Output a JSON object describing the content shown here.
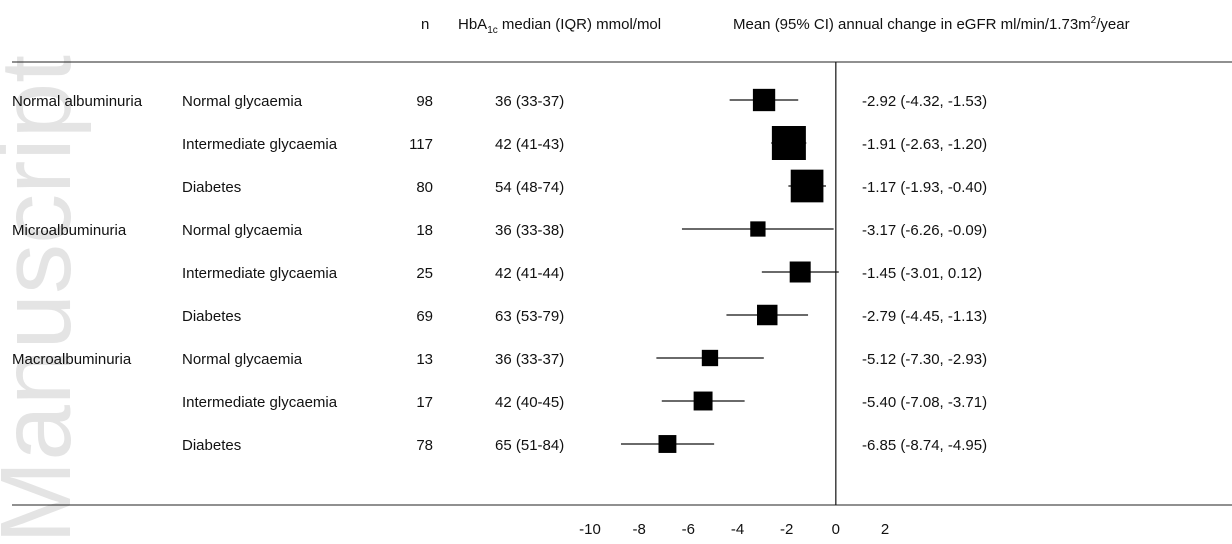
{
  "watermark": "Manuscript",
  "columns": {
    "n": "n",
    "hba1c_main": "HbA",
    "hba1c_sub": "1c",
    "hba1c_rest": " median (IQR) mmol/mol",
    "effect_main": "Mean (95% CI) annual change in eGFR ml/min/1.73m",
    "effect_sup": "2",
    "effect_rest": "/year"
  },
  "groups": [
    {
      "label": "Normal albuminuria",
      "row": 0
    },
    {
      "label": "Microalbuminuria",
      "row": 3
    },
    {
      "label": "Macroalbuminuria",
      "row": 6
    }
  ],
  "chart_data": {
    "type": "forest",
    "title": "",
    "xlabel": "",
    "xlim": [
      -10,
      2
    ],
    "xticks": [
      -10,
      -8,
      -6,
      -4,
      -2,
      0,
      2
    ],
    "reference_line": 0,
    "rows": [
      {
        "albuminuria": "Normal albuminuria",
        "glycaemia": "Normal glycaemia",
        "n": "98",
        "hba1c": "36 (33-37)",
        "mean": -2.92,
        "lo": -4.32,
        "hi": -1.53,
        "ci_text": "-2.92 (-4.32, -1.53)",
        "weight": 0.55
      },
      {
        "albuminuria": "Normal albuminuria",
        "glycaemia": "Intermediate glycaemia",
        "n": "117",
        "hba1c": "42 (41-43)",
        "mean": -1.91,
        "lo": -2.63,
        "hi": -1.2,
        "ci_text": "-1.91 (-2.63, -1.20)",
        "weight": 1.0
      },
      {
        "albuminuria": "Normal albuminuria",
        "glycaemia": "Diabetes",
        "n": "80",
        "hba1c": "54 (48-74)",
        "mean": -1.17,
        "lo": -1.93,
        "hi": -0.4,
        "ci_text": "-1.17 (-1.93, -0.40)",
        "weight": 0.95
      },
      {
        "albuminuria": "Microalbuminuria",
        "glycaemia": "Normal glycaemia",
        "n": "18",
        "hba1c": "36 (33-38)",
        "mean": -3.17,
        "lo": -6.26,
        "hi": -0.09,
        "ci_text": "-3.17 (-6.26, -0.09)",
        "weight": 0.28
      },
      {
        "albuminuria": "Microalbuminuria",
        "glycaemia": "Intermediate glycaemia",
        "n": "25",
        "hba1c": "42 (41-44)",
        "mean": -1.45,
        "lo": -3.01,
        "hi": 0.12,
        "ci_text": "-1.45 (-3.01, 0.12)",
        "weight": 0.5
      },
      {
        "albuminuria": "Microalbuminuria",
        "glycaemia": "Diabetes",
        "n": "69",
        "hba1c": "63 (53-79)",
        "mean": -2.79,
        "lo": -4.45,
        "hi": -1.13,
        "ci_text": "-2.79 (-4.45, -1.13)",
        "weight": 0.48
      },
      {
        "albuminuria": "Macroalbuminuria",
        "glycaemia": "Normal glycaemia",
        "n": "13",
        "hba1c": "36 (33-37)",
        "mean": -5.12,
        "lo": -7.3,
        "hi": -2.93,
        "ci_text": "-5.12 (-7.30, -2.93)",
        "weight": 0.32
      },
      {
        "albuminuria": "Macroalbuminuria",
        "glycaemia": "Intermediate glycaemia",
        "n": "17",
        "hba1c": "42 (40-45)",
        "mean": -5.4,
        "lo": -7.08,
        "hi": -3.71,
        "ci_text": "-5.40 (-7.08, -3.71)",
        "weight": 0.42
      },
      {
        "albuminuria": "Macroalbuminuria",
        "glycaemia": "Diabetes",
        "n": "78",
        "hba1c": "65 (51-84)",
        "mean": -6.85,
        "lo": -8.74,
        "hi": -4.95,
        "ci_text": "-6.85 (-8.74, -4.95)",
        "weight": 0.38
      }
    ]
  }
}
